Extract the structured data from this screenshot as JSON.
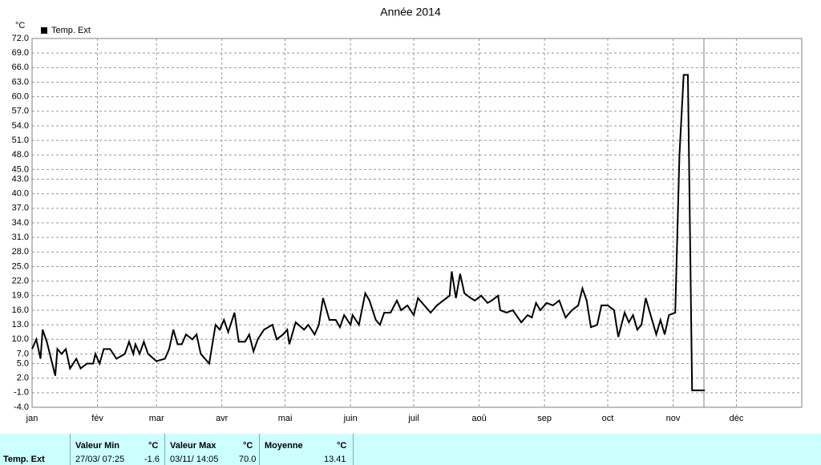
{
  "chart_data": {
    "type": "line",
    "title": "Année 2014",
    "y_unit": "°C",
    "x": [
      0,
      2,
      4,
      5,
      7,
      9,
      11,
      12,
      14,
      16,
      18,
      21,
      23,
      26,
      29,
      30,
      32,
      34,
      37,
      40,
      44,
      46,
      48,
      49,
      51,
      53,
      55,
      59,
      63,
      65,
      67,
      69,
      71,
      73,
      76,
      78,
      80,
      84,
      87,
      89,
      91,
      93,
      96,
      98,
      101,
      103,
      105,
      107,
      110,
      114,
      116,
      119,
      121,
      122,
      125,
      129,
      131,
      134,
      136,
      138,
      141,
      144,
      146,
      148,
      151,
      152,
      155,
      158,
      160,
      163,
      165,
      167,
      170,
      173,
      175,
      178,
      181,
      183,
      186,
      189,
      192,
      195,
      198,
      199,
      201,
      203,
      205,
      208,
      210,
      213,
      216,
      218,
      221,
      222,
      225,
      228,
      232,
      235,
      237,
      239,
      241,
      244,
      247,
      250,
      253,
      256,
      259,
      261,
      263,
      265,
      268,
      270,
      273,
      276,
      278,
      281,
      283,
      285,
      287,
      289,
      291,
      294,
      296,
      298,
      300,
      302,
      305,
      307,
      309,
      311,
      313,
      319
    ],
    "series": [
      {
        "name": "Temp. Ext",
        "color": "#000000",
        "values": [
          8,
          10,
          6,
          12,
          9.5,
          6,
          2.5,
          8,
          7,
          8,
          4,
          6,
          4,
          5,
          5,
          7,
          5,
          8,
          8,
          6,
          7,
          9.5,
          7,
          9,
          7,
          9.5,
          7,
          5.5,
          6,
          8,
          12,
          9,
          9,
          11,
          10,
          11,
          7,
          5,
          13,
          12,
          14,
          11.5,
          15.5,
          9.5,
          9.5,
          11,
          7.5,
          10,
          12,
          13,
          10,
          11,
          12,
          9,
          13.5,
          12,
          13,
          11,
          13,
          18.5,
          14,
          14,
          12.5,
          15,
          13,
          15,
          13,
          19.5,
          18,
          14,
          13,
          15.5,
          15.5,
          18,
          16,
          17,
          15,
          18.5,
          17,
          15.5,
          17,
          18,
          19,
          24,
          18.5,
          23.5,
          19.5,
          18.5,
          18,
          19,
          17.5,
          18,
          19,
          16,
          15.5,
          16,
          13.5,
          15,
          14.5,
          17.5,
          16,
          17.5,
          17,
          18,
          14.5,
          16,
          17,
          20.5,
          18,
          12.5,
          13,
          17,
          17,
          16,
          10.5,
          15.5,
          13.5,
          15,
          12,
          13,
          18.5,
          14,
          11,
          14,
          11,
          15,
          15.5,
          48,
          64.5,
          64.5,
          -0.5,
          -0.5
        ]
      }
    ],
    "xlim": [
      0,
      365
    ],
    "xticks": [
      {
        "value": 0,
        "label": "jan"
      },
      {
        "value": 31,
        "label": "fév"
      },
      {
        "value": 59,
        "label": "mar"
      },
      {
        "value": 90,
        "label": "avr"
      },
      {
        "value": 120,
        "label": "mai"
      },
      {
        "value": 151,
        "label": "juin"
      },
      {
        "value": 181,
        "label": "juil"
      },
      {
        "value": 212,
        "label": "aoû"
      },
      {
        "value": 243,
        "label": "sep"
      },
      {
        "value": 273,
        "label": "oct"
      },
      {
        "value": 304,
        "label": "nov"
      },
      {
        "value": 334,
        "label": "déc"
      }
    ],
    "ylim": [
      -4,
      72
    ],
    "yticks": [
      {
        "value": 72,
        "label": "72.0"
      },
      {
        "value": 69,
        "label": "69.0"
      },
      {
        "value": 66,
        "label": "66.0"
      },
      {
        "value": 63,
        "label": "63.0"
      },
      {
        "value": 60,
        "label": "60.0"
      },
      {
        "value": 57,
        "label": "57.0"
      },
      {
        "value": 54,
        "label": "54.0"
      },
      {
        "value": 51,
        "label": "51.0"
      },
      {
        "value": 48,
        "label": "48.0"
      },
      {
        "value": 45,
        "label": "45.0"
      },
      {
        "value": 43,
        "label": "43.0"
      },
      {
        "value": 40,
        "label": "40.0"
      },
      {
        "value": 37,
        "label": "37.0"
      },
      {
        "value": 34,
        "label": "34.0"
      },
      {
        "value": 31,
        "label": "31.0"
      },
      {
        "value": 28,
        "label": "28.0"
      },
      {
        "value": 25,
        "label": "25.0"
      },
      {
        "value": 22,
        "label": "22.0"
      },
      {
        "value": 19,
        "label": "19.0"
      },
      {
        "value": 16,
        "label": "16.0"
      },
      {
        "value": 13,
        "label": "13.0"
      },
      {
        "value": 10,
        "label": "10.0"
      },
      {
        "value": 7,
        "label": "7.0"
      },
      {
        "value": 5,
        "label": "5.0"
      },
      {
        "value": 2,
        "label": "2.0"
      },
      {
        "value": -1,
        "label": "-1.0"
      },
      {
        "value": -4,
        "label": "-4.0"
      }
    ],
    "grid": true
  },
  "stats": {
    "row_label": "Temp. Ext",
    "headers": [
      "Valeur Min",
      "°C",
      "Valeur Max",
      "°C",
      "Moyenne",
      "°C"
    ],
    "values": [
      "27/03/ 07:25",
      "-1.6",
      "03/11/ 14:05",
      "70.0",
      "",
      "13.41"
    ]
  }
}
